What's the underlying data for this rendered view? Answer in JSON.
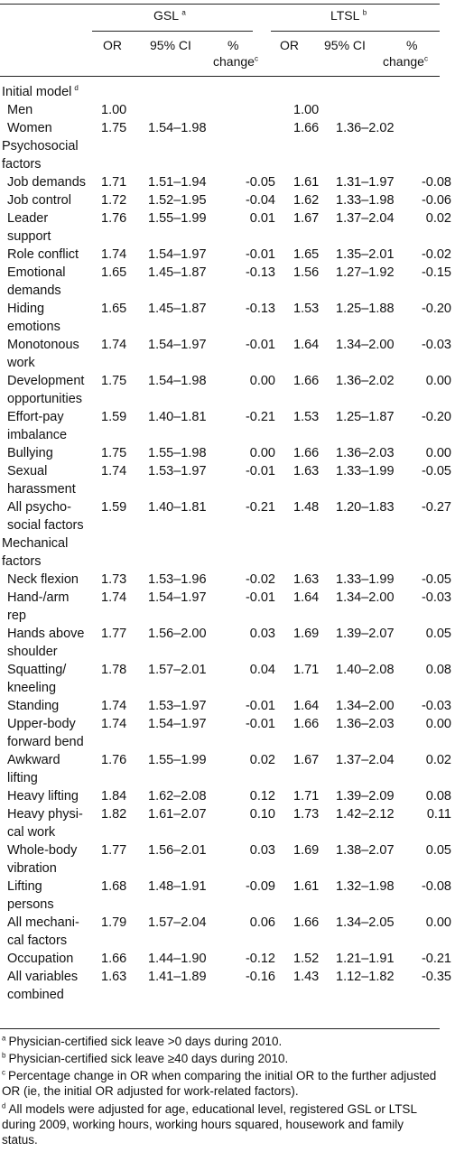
{
  "header": {
    "gsl_title": "GSL",
    "gsl_sup": "a",
    "ltsl_title": "LTSL",
    "ltsl_sup": "b",
    "col_or": "OR",
    "col_ci": "95% CI",
    "col_pct_1": "%",
    "col_pct_2": "change",
    "col_pct_sup": "c"
  },
  "rows": [
    {
      "label": [
        "Initial model"
      ],
      "sup": "d",
      "section": true
    },
    {
      "label": [
        "Men"
      ],
      "v": [
        "1.00",
        "",
        "",
        "1.00",
        "",
        ""
      ]
    },
    {
      "label": [
        "Women"
      ],
      "v": [
        "1.75",
        "1.54–1.98",
        "",
        "1.66",
        "1.36–2.02",
        ""
      ]
    },
    {
      "label": [
        "Psychosocial",
        "factors"
      ],
      "section": true
    },
    {
      "label": [
        "Job demands"
      ],
      "v": [
        "1.71",
        "1.51–1.94",
        "-0.05",
        "1.61",
        "1.31–1.97",
        "-0.08"
      ]
    },
    {
      "label": [
        "Job control"
      ],
      "v": [
        "1.72",
        "1.52–1.95",
        "-0.04",
        "1.62",
        "1.33–1.98",
        "-0.06"
      ]
    },
    {
      "label": [
        "Leader",
        "support"
      ],
      "v": [
        "1.76",
        "1.55–1.99",
        "0.01",
        "1.67",
        "1.37–2.04",
        "0.02"
      ]
    },
    {
      "label": [
        "Role conflict"
      ],
      "v": [
        "1.74",
        "1.54–1.97",
        "-0.01",
        "1.65",
        "1.35–2.01",
        "-0.02"
      ]
    },
    {
      "label": [
        "Emotional",
        "demands"
      ],
      "v": [
        "1.65",
        "1.45–1.87",
        "-0.13",
        "1.56",
        "1.27–1.92",
        "-0.15"
      ]
    },
    {
      "label": [
        "Hiding",
        "emotions"
      ],
      "v": [
        "1.65",
        "1.45–1.87",
        "-0.13",
        "1.53",
        "1.25–1.88",
        "-0.20"
      ]
    },
    {
      "label": [
        "Monotonous",
        "work"
      ],
      "v": [
        "1.74",
        "1.54–1.97",
        "-0.01",
        "1.64",
        "1.34–2.00",
        "-0.03"
      ]
    },
    {
      "label": [
        "Development",
        "opportunities"
      ],
      "v": [
        "1.75",
        "1.54–1.98",
        "0.00",
        "1.66",
        "1.36–2.02",
        "0.00"
      ]
    },
    {
      "label": [
        "Effort-pay",
        "imbalance"
      ],
      "v": [
        "1.59",
        "1.40–1.81",
        "-0.21",
        "1.53",
        "1.25–1.87",
        "-0.20"
      ]
    },
    {
      "label": [
        "Bullying"
      ],
      "v": [
        "1.75",
        "1.55–1.98",
        "0.00",
        "1.66",
        "1.36–2.03",
        "0.00"
      ]
    },
    {
      "label": [
        "Sexual",
        "harassment"
      ],
      "v": [
        "1.74",
        "1.53–1.97",
        "-0.01",
        "1.63",
        "1.33–1.99",
        "-0.05"
      ]
    },
    {
      "label": [
        "All psycho-",
        "social factors"
      ],
      "v": [
        "1.59",
        "1.40–1.81",
        "-0.21",
        "1.48",
        "1.20–1.83",
        "-0.27"
      ]
    },
    {
      "label": [
        "Mechanical",
        "factors"
      ],
      "section": true
    },
    {
      "label": [
        "Neck flexion"
      ],
      "v": [
        "1.73",
        "1.53–1.96",
        "-0.02",
        "1.63",
        "1.33–1.99",
        "-0.05"
      ]
    },
    {
      "label": [
        "Hand-/arm",
        "rep"
      ],
      "v": [
        "1.74",
        "1.54–1.97",
        "-0.01",
        "1.64",
        "1.34–2.00",
        "-0.03"
      ]
    },
    {
      "label": [
        "Hands above",
        "shoulder"
      ],
      "v": [
        "1.77",
        "1.56–2.00",
        "0.03",
        "1.69",
        "1.39–2.07",
        "0.05"
      ]
    },
    {
      "label": [
        "Squatting/",
        "kneeling"
      ],
      "v": [
        "1.78",
        "1.57–2.01",
        "0.04",
        "1.71",
        "1.40–2.08",
        "0.08"
      ]
    },
    {
      "label": [
        "Standing"
      ],
      "v": [
        "1.74",
        "1.53–1.97",
        "-0.01",
        "1.64",
        "1.34–2.00",
        "-0.03"
      ]
    },
    {
      "label": [
        "Upper-body",
        "forward bend"
      ],
      "v": [
        "1.74",
        "1.54–1.97",
        "-0.01",
        "1.66",
        "1.36–2.03",
        "0.00"
      ]
    },
    {
      "label": [
        "Awkward",
        "lifting"
      ],
      "v": [
        "1.76",
        "1.55–1.99",
        "0.02",
        "1.67",
        "1.37–2.04",
        "0.02"
      ]
    },
    {
      "label": [
        "Heavy lifting"
      ],
      "v": [
        "1.84",
        "1.62–2.08",
        "0.12",
        "1.71",
        "1.39–2.09",
        "0.08"
      ]
    },
    {
      "label": [
        "Heavy physi-",
        "cal work"
      ],
      "v": [
        "1.82",
        "1.61–2.07",
        "0.10",
        "1.73",
        "1.42–2.12",
        "0.11"
      ]
    },
    {
      "label": [
        "Whole-body",
        "vibration"
      ],
      "v": [
        "1.77",
        "1.56–2.01",
        "0.03",
        "1.69",
        "1.38–2.07",
        "0.05"
      ]
    },
    {
      "label": [
        "Lifting",
        "persons"
      ],
      "v": [
        "1.68",
        "1.48–1.91",
        "-0.09",
        "1.61",
        "1.32–1.98",
        "-0.08"
      ]
    },
    {
      "label": [
        "All mechani-",
        "cal factors"
      ],
      "v": [
        "1.79",
        "1.57–2.04",
        "0.06",
        "1.66",
        "1.34–2.05",
        "0.00"
      ]
    },
    {
      "label": [
        "Occupation"
      ],
      "v": [
        "1.66",
        "1.44–1.90",
        "-0.12",
        "1.52",
        "1.21–1.91",
        "-0.21"
      ]
    },
    {
      "label": [
        "All variables",
        "combined"
      ],
      "v": [
        "1.63",
        "1.41–1.89",
        "-0.16",
        "1.43",
        "1.12–1.82",
        "-0.35"
      ]
    }
  ],
  "footnotes": [
    {
      "sup": "a",
      "text": "Physician-certified sick leave >0 days during 2010."
    },
    {
      "sup": "b",
      "text": "Physician-certified sick leave ≥40 days during 2010."
    },
    {
      "sup": "c",
      "text": "Percentage change in OR when comparing the initial OR to the further adjusted OR (ie, the initial OR adjusted for work-related factors)."
    },
    {
      "sup": "d",
      "text": "All models were adjusted for age, educational level, registered GSL or LTSL during 2009, working hours, working hours squared, housework and family status."
    }
  ]
}
